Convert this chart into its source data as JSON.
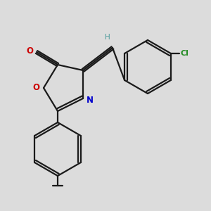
{
  "bg_color": "#dcdcdc",
  "bond_color": "#1a1a1a",
  "oxygen_color": "#cc0000",
  "nitrogen_color": "#0000cc",
  "chlorine_color": "#228b22",
  "hydrogen_color": "#4a9a9a",
  "lw": 1.6,
  "dbo": 0.025,
  "xlim": [
    0,
    3.0
  ],
  "ylim": [
    0,
    3.0
  ]
}
